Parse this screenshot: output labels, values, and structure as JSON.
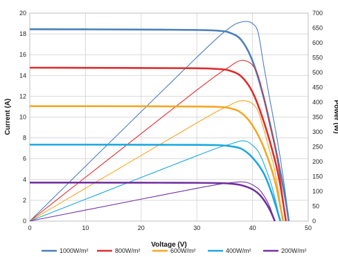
{
  "chart_data": {
    "type": "line",
    "title": "",
    "xlabel": "Voltage (V)",
    "ylabel_left": "Current (A)",
    "ylabel_right": "Power (W)",
    "xlim": [
      0,
      50
    ],
    "ylim_left": [
      0,
      20
    ],
    "ylim_right": [
      0,
      700
    ],
    "x_ticks": [
      "0",
      "10",
      "20",
      "30",
      "40",
      "50"
    ],
    "y_left_ticks": [
      "0",
      "2",
      "4",
      "6",
      "8",
      "10",
      "12",
      "14",
      "16",
      "18",
      "20"
    ],
    "y_right_ticks": [
      "0",
      "50",
      "100",
      "150",
      "200",
      "250",
      "300",
      "350",
      "400",
      "450",
      "500",
      "550",
      "600",
      "650",
      "700"
    ],
    "grid": true,
    "legend_position": "bottom",
    "series": [
      {
        "name": "1000W/m²",
        "color": "#4a7ebb",
        "isc": 18.45,
        "voc": 46.5,
        "iv_curve": [
          [
            0,
            18.45
          ],
          [
            10,
            18.44
          ],
          [
            20,
            18.42
          ],
          [
            30,
            18.38
          ],
          [
            34,
            18.3
          ],
          [
            36,
            18.1
          ],
          [
            38,
            17.4
          ],
          [
            40,
            15.4
          ],
          [
            42,
            11.9
          ],
          [
            44,
            7.3
          ],
          [
            45,
            4.7
          ],
          [
            46,
            1.8
          ],
          [
            46.5,
            0
          ]
        ],
        "power_curve": [
          [
            0,
            0
          ],
          [
            10,
            184.4
          ],
          [
            20,
            368.4
          ],
          [
            30,
            551.4
          ],
          [
            34,
            622
          ],
          [
            36,
            652
          ],
          [
            37,
            664
          ],
          [
            38,
            670
          ],
          [
            39,
            672
          ],
          [
            40,
            665
          ],
          [
            41,
            635
          ],
          [
            42,
            525
          ],
          [
            43,
            420
          ],
          [
            44,
            320
          ],
          [
            45,
            210
          ],
          [
            46,
            80
          ],
          [
            46.5,
            0
          ]
        ]
      },
      {
        "name": "800W/m²",
        "color": "#e02b2b",
        "isc": 14.75,
        "voc": 46,
        "iv_curve": [
          [
            0,
            14.75
          ],
          [
            10,
            14.74
          ],
          [
            20,
            14.72
          ],
          [
            30,
            14.7
          ],
          [
            34,
            14.62
          ],
          [
            36,
            14.45
          ],
          [
            38,
            13.9
          ],
          [
            40,
            12.4
          ],
          [
            42,
            9.6
          ],
          [
            44,
            5.9
          ],
          [
            45,
            3.4
          ],
          [
            46,
            0
          ]
        ],
        "power_curve": [
          [
            0,
            0
          ],
          [
            10,
            147.4
          ],
          [
            20,
            294.4
          ],
          [
            30,
            441
          ],
          [
            34,
            497
          ],
          [
            36,
            521
          ],
          [
            37,
            534
          ],
          [
            38,
            541
          ],
          [
            39,
            538
          ],
          [
            40,
            525
          ],
          [
            41,
            490
          ],
          [
            42,
            420
          ],
          [
            43,
            330
          ],
          [
            44,
            250
          ],
          [
            45,
            140
          ],
          [
            46,
            0
          ]
        ]
      },
      {
        "name": "600W/m²",
        "color": "#f5a623",
        "isc": 11.05,
        "voc": 45.5,
        "iv_curve": [
          [
            0,
            11.05
          ],
          [
            10,
            11.05
          ],
          [
            20,
            11.04
          ],
          [
            30,
            11.02
          ],
          [
            34,
            10.98
          ],
          [
            36,
            10.85
          ],
          [
            38,
            10.4
          ],
          [
            40,
            9.2
          ],
          [
            42,
            7.1
          ],
          [
            44,
            3.9
          ],
          [
            45.5,
            0
          ]
        ],
        "power_curve": [
          [
            0,
            0
          ],
          [
            10,
            110.5
          ],
          [
            20,
            220.8
          ],
          [
            30,
            330.6
          ],
          [
            34,
            373
          ],
          [
            36,
            391
          ],
          [
            37,
            400
          ],
          [
            38,
            405
          ],
          [
            39,
            404
          ],
          [
            40,
            395
          ],
          [
            41,
            370
          ],
          [
            42,
            310
          ],
          [
            43,
            240
          ],
          [
            44,
            170
          ],
          [
            45.5,
            0
          ]
        ]
      },
      {
        "name": "400W/m²",
        "color": "#1aa7e0",
        "isc": 7.35,
        "voc": 45,
        "iv_curve": [
          [
            0,
            7.35
          ],
          [
            10,
            7.35
          ],
          [
            20,
            7.34
          ],
          [
            30,
            7.33
          ],
          [
            34,
            7.3
          ],
          [
            36,
            7.2
          ],
          [
            38,
            6.95
          ],
          [
            40,
            6.1
          ],
          [
            42,
            4.6
          ],
          [
            43.5,
            2.6
          ],
          [
            45,
            0
          ]
        ],
        "power_curve": [
          [
            0,
            0
          ],
          [
            10,
            73.5
          ],
          [
            20,
            146.8
          ],
          [
            30,
            219.9
          ],
          [
            34,
            248
          ],
          [
            36,
            259
          ],
          [
            37,
            265
          ],
          [
            38,
            270
          ],
          [
            39,
            268
          ],
          [
            40,
            255
          ],
          [
            41,
            235
          ],
          [
            42,
            195
          ],
          [
            43.5,
            115
          ],
          [
            45,
            0
          ]
        ]
      },
      {
        "name": "200W/m²",
        "color": "#7030a0",
        "isc": 3.7,
        "voc": 44,
        "iv_curve": [
          [
            0,
            3.7
          ],
          [
            10,
            3.7
          ],
          [
            20,
            3.69
          ],
          [
            30,
            3.68
          ],
          [
            34,
            3.65
          ],
          [
            36,
            3.6
          ],
          [
            38,
            3.45
          ],
          [
            40,
            3.05
          ],
          [
            41.5,
            2.4
          ],
          [
            43,
            1.2
          ],
          [
            44,
            0
          ]
        ],
        "power_curve": [
          [
            0,
            0
          ],
          [
            10,
            37
          ],
          [
            20,
            73.8
          ],
          [
            30,
            110.4
          ],
          [
            34,
            124
          ],
          [
            36,
            129
          ],
          [
            37,
            131
          ],
          [
            38,
            132
          ],
          [
            39,
            130
          ],
          [
            40,
            122
          ],
          [
            41.5,
            100
          ],
          [
            43,
            52
          ],
          [
            44,
            0
          ]
        ]
      }
    ]
  }
}
